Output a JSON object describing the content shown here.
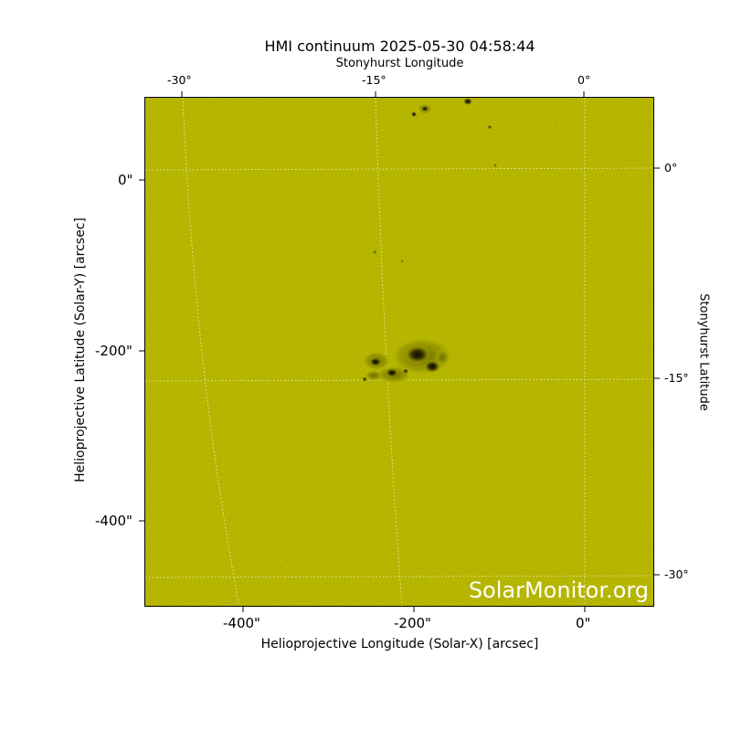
{
  "title": "HMI continuum 2025-05-30 04:58:44",
  "top_axis": {
    "label": "Stonyhurst Longitude",
    "ticks": [
      "-30°",
      "-15°",
      "0°"
    ]
  },
  "right_axis": {
    "label": "Stonyhurst Latitude",
    "ticks": [
      "0°",
      "-15°",
      "-30°"
    ]
  },
  "left_axis": {
    "label": "Helioprojective Latitude (Solar-Y) [arcsec]",
    "ticks": [
      "0\"",
      "-200\"",
      "-400\""
    ]
  },
  "bottom_axis": {
    "label": "Helioprojective Longitude (Solar-X) [arcsec]",
    "ticks": [
      "-400\"",
      "-200\"",
      "0\""
    ]
  },
  "watermark": "SolarMonitor.org",
  "colors": {
    "background": "#cccc00",
    "sunspot": "#2a2a00",
    "grid": "#ffffff"
  }
}
